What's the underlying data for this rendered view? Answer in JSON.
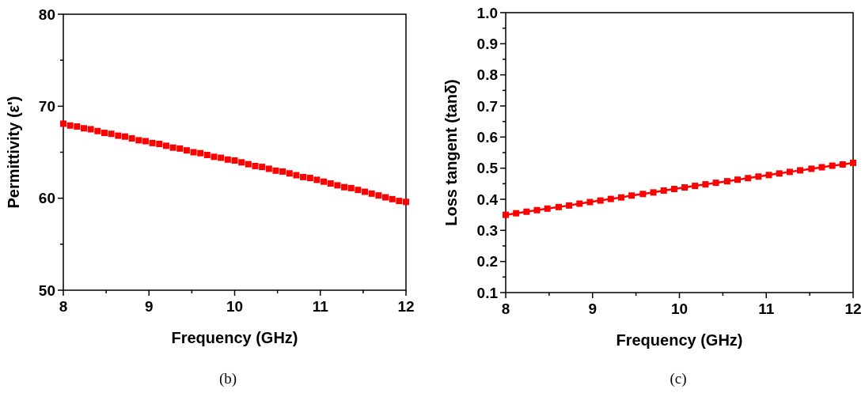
{
  "chart_data": [
    {
      "type": "scatter",
      "xlabel": "Frequency (GHz)",
      "ylabel": "Permittivity (ε')",
      "annotations": [
        "(b)"
      ],
      "marker": "square",
      "xlim": [
        8,
        12
      ],
      "ylim": [
        50,
        80
      ],
      "xticks": [
        8,
        {
          "value": 8.5,
          "label": null
        },
        9,
        {
          "value": 9.5,
          "label": null
        },
        10,
        {
          "value": 10.5,
          "label": null
        },
        11,
        {
          "value": 11.5,
          "label": null
        },
        12
      ],
      "yticks": [
        50,
        {
          "value": 55,
          "label": null
        },
        60,
        {
          "value": 65,
          "label": null
        },
        70,
        {
          "value": 75,
          "label": null
        },
        80
      ],
      "series": [
        {
          "color": "#ff0000",
          "x": [
            8,
            8.08,
            8.16,
            8.24,
            8.32,
            8.4,
            8.48,
            8.56,
            8.64,
            8.72,
            8.8,
            8.88,
            8.96,
            9.04,
            9.12,
            9.2,
            9.28,
            9.36,
            9.44,
            9.52,
            9.6,
            9.68,
            9.76,
            9.84,
            9.92,
            10,
            10.08,
            10.16,
            10.24,
            10.32,
            10.4,
            10.48,
            10.56,
            10.64,
            10.72,
            10.8,
            10.88,
            10.96,
            11.04,
            11.12,
            11.2,
            11.28,
            11.36,
            11.44,
            11.52,
            11.6,
            11.68,
            11.76,
            11.84,
            11.92,
            12
          ],
          "values": [
            68.1,
            67.9,
            67.8,
            67.6,
            67.5,
            67.3,
            67.1,
            67,
            66.8,
            66.7,
            66.5,
            66.3,
            66.2,
            66,
            65.9,
            65.7,
            65.5,
            65.4,
            65.2,
            65,
            64.9,
            64.7,
            64.5,
            64.4,
            64.2,
            64.1,
            63.9,
            63.7,
            63.5,
            63.4,
            63.2,
            63,
            62.9,
            62.7,
            62.5,
            62.3,
            62.2,
            62,
            61.8,
            61.6,
            61.4,
            61.2,
            61.1,
            60.9,
            60.7,
            60.5,
            60.3,
            60.1,
            59.9,
            59.7,
            59.6
          ]
        }
      ]
    },
    {
      "type": "line",
      "xlabel": "Frequency (GHz)",
      "ylabel": "Loss tangent (tanδ)",
      "annotations": [
        "(c)"
      ],
      "marker": "square",
      "line_style": "solid",
      "xlim": [
        8,
        12
      ],
      "ylim": [
        0.1,
        1
      ],
      "xticks": [
        8,
        {
          "value": 8.5,
          "label": null
        },
        9,
        {
          "value": 9.5,
          "label": null
        },
        10,
        {
          "value": 10.5,
          "label": null
        },
        11,
        {
          "value": 11.5,
          "label": null
        },
        12
      ],
      "yticks": [
        0.1,
        {
          "value": 0.15,
          "label": null
        },
        0.2,
        {
          "value": 0.25,
          "label": null
        },
        0.3,
        {
          "value": 0.35,
          "label": null
        },
        0.4,
        {
          "value": 0.45,
          "label": null
        },
        0.5,
        {
          "value": 0.55,
          "label": null
        },
        0.6,
        {
          "value": 0.65,
          "label": null
        },
        0.7,
        {
          "value": 0.75,
          "label": null
        },
        0.8,
        {
          "value": 0.85,
          "label": null
        },
        0.9,
        {
          "value": 0.95,
          "label": null
        },
        {
          "value": 1,
          "label": "1.0"
        }
      ],
      "series": [
        {
          "color": "#ff0000",
          "x": [
            8,
            8.12,
            8.24,
            8.36,
            8.48,
            8.61,
            8.73,
            8.85,
            8.97,
            9.09,
            9.21,
            9.33,
            9.45,
            9.58,
            9.7,
            9.82,
            9.94,
            10.06,
            10.18,
            10.3,
            10.42,
            10.55,
            10.67,
            10.79,
            10.91,
            11.03,
            11.15,
            11.27,
            11.39,
            11.52,
            11.64,
            11.76,
            11.88,
            12
          ],
          "values": [
            0.35,
            0.355,
            0.36,
            0.365,
            0.37,
            0.375,
            0.38,
            0.386,
            0.391,
            0.396,
            0.401,
            0.406,
            0.412,
            0.417,
            0.422,
            0.428,
            0.433,
            0.438,
            0.443,
            0.448,
            0.453,
            0.458,
            0.463,
            0.468,
            0.473,
            0.478,
            0.483,
            0.488,
            0.493,
            0.498,
            0.503,
            0.508,
            0.512,
            0.517
          ]
        }
      ]
    }
  ]
}
